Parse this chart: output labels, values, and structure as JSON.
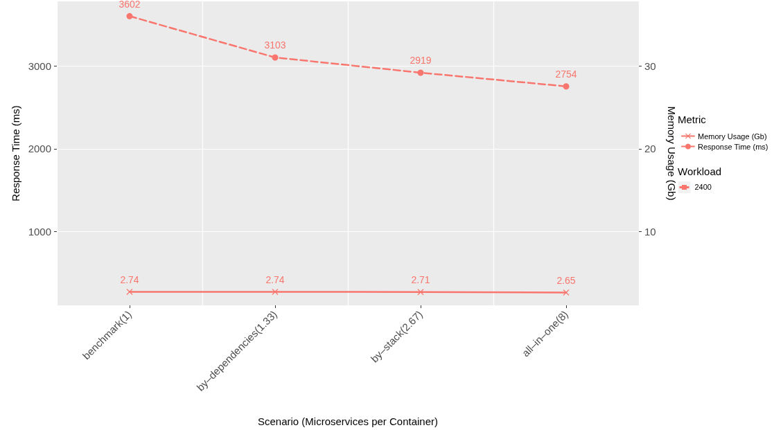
{
  "chart_data": {
    "type": "line",
    "categories": [
      "benchmark(1)",
      "by–dependencies(1.33)",
      "by–stack(2.67)",
      "all–in–one(8)"
    ],
    "series": [
      {
        "name": "Memory Usage (Gb)",
        "color": "#f8766d",
        "values": [
          2.74,
          2.74,
          2.71,
          2.65
        ],
        "axis": "y2",
        "line_style": "solid",
        "marker": "cross"
      },
      {
        "name": "Response Time (ms)",
        "color": "#f8766d",
        "values": [
          3602,
          3103,
          2919,
          2754
        ],
        "line_style": "dashed",
        "marker": "circle"
      }
    ],
    "xlabel": "Scenario (Microservices per Container)",
    "ylabel": "Response Time (ms)",
    "y2label": "Memory Usage (Gb)",
    "ylim": [
      110,
      3780
    ],
    "yticks": [
      1000,
      2000,
      3000
    ],
    "y2lim": [
      1.1,
      37.8
    ],
    "y2ticks": [
      10,
      20,
      30
    ],
    "legend_title": "Metric",
    "legend": "right",
    "grid": true,
    "data_labels": true,
    "annotations": [
      "Workload",
      "2400"
    ]
  }
}
